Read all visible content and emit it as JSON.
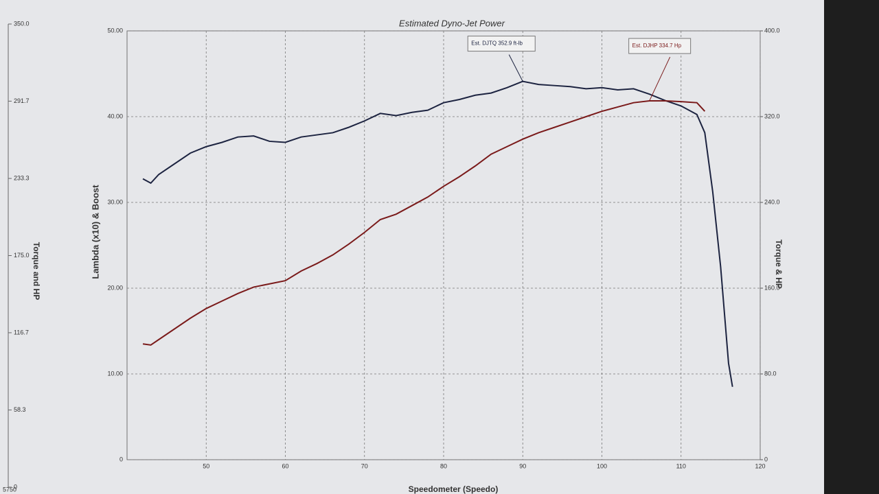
{
  "chart_data": {
    "type": "line",
    "title": "Estimated Dyno-Jet Power",
    "x_label": "Speedometer (Speedo)",
    "y_label": "Lambda (x10) & Boost",
    "y2_label": "Torque & HP",
    "xlim": [
      40,
      120
    ],
    "xticks": [
      50,
      60,
      70,
      80,
      90,
      100,
      110,
      120
    ],
    "ylim": [
      0,
      50
    ],
    "yticks": [
      0,
      {
        "value": 10,
        "label": "10.00"
      },
      {
        "value": 20,
        "label": "20.00"
      },
      {
        "value": 30,
        "label": "30.00"
      },
      {
        "value": 40,
        "label": "40.00"
      },
      {
        "value": 50,
        "label": "50.00"
      }
    ],
    "y2lim": [
      0,
      400
    ],
    "y2ticks": [
      0,
      {
        "value": 80,
        "label": "80.0"
      },
      {
        "value": 160,
        "label": "160.0"
      },
      {
        "value": 240,
        "label": "240.0"
      },
      {
        "value": 320,
        "label": "320.0"
      },
      {
        "value": 400,
        "label": "400.0"
      }
    ],
    "grid": true,
    "side_axis": {
      "label": "Torque and HP",
      "lim": [
        0,
        350
      ],
      "ticks": [
        0,
        {
          "value": 58.3,
          "label": "58.3"
        },
        {
          "value": 116.7,
          "label": "116.7"
        },
        {
          "value": 175,
          "label": "175.0"
        },
        {
          "value": 233.3,
          "label": "233.3"
        },
        {
          "value": 291.7,
          "label": "291.7"
        },
        {
          "value": 350,
          "label": "350.0"
        }
      ],
      "corner_label": "5750"
    },
    "series": [
      {
        "name": "Est. DJTQ",
        "color": "#1c2340",
        "axis": "y2",
        "annotation": "Est. DJTQ 352.9 ft-lb",
        "x": [
          42,
          43,
          44,
          46,
          48,
          50,
          52,
          54,
          56,
          58,
          60,
          62,
          64,
          66,
          68,
          70,
          72,
          74,
          76,
          78,
          80,
          82,
          84,
          86,
          88,
          90,
          92,
          94,
          96,
          98,
          100,
          102,
          104,
          106,
          108,
          110,
          112,
          113,
          114,
          115,
          116,
          116.5
        ],
        "values": [
          262,
          258,
          266,
          276,
          286,
          292,
          296,
          301,
          302,
          297,
          296,
          301,
          303,
          305,
          310,
          316,
          323,
          321,
          324,
          326,
          333,
          336,
          340,
          342,
          347,
          352.9,
          350,
          349,
          348,
          346,
          347,
          345,
          346,
          341,
          335,
          330,
          322,
          305,
          250,
          180,
          90,
          68
        ]
      },
      {
        "name": "Est. DJHP",
        "color": "#7a1a1a",
        "axis": "y2",
        "annotation": "Est. DJHP 334.7 Hp",
        "x": [
          42,
          43,
          44,
          46,
          48,
          50,
          52,
          54,
          56,
          58,
          60,
          62,
          64,
          66,
          68,
          70,
          72,
          74,
          76,
          78,
          80,
          82,
          84,
          86,
          88,
          90,
          92,
          94,
          96,
          98,
          100,
          102,
          104,
          106,
          108,
          110,
          112,
          113
        ],
        "values": [
          108,
          107,
          112,
          122,
          132,
          141,
          148,
          155,
          161,
          164,
          167,
          176,
          183,
          191,
          201,
          212,
          224,
          229,
          237,
          245,
          255,
          264,
          274,
          285,
          292,
          299,
          305,
          310,
          315,
          320,
          325,
          329,
          333,
          334.7,
          334.7,
          334,
          333,
          325
        ]
      }
    ]
  }
}
